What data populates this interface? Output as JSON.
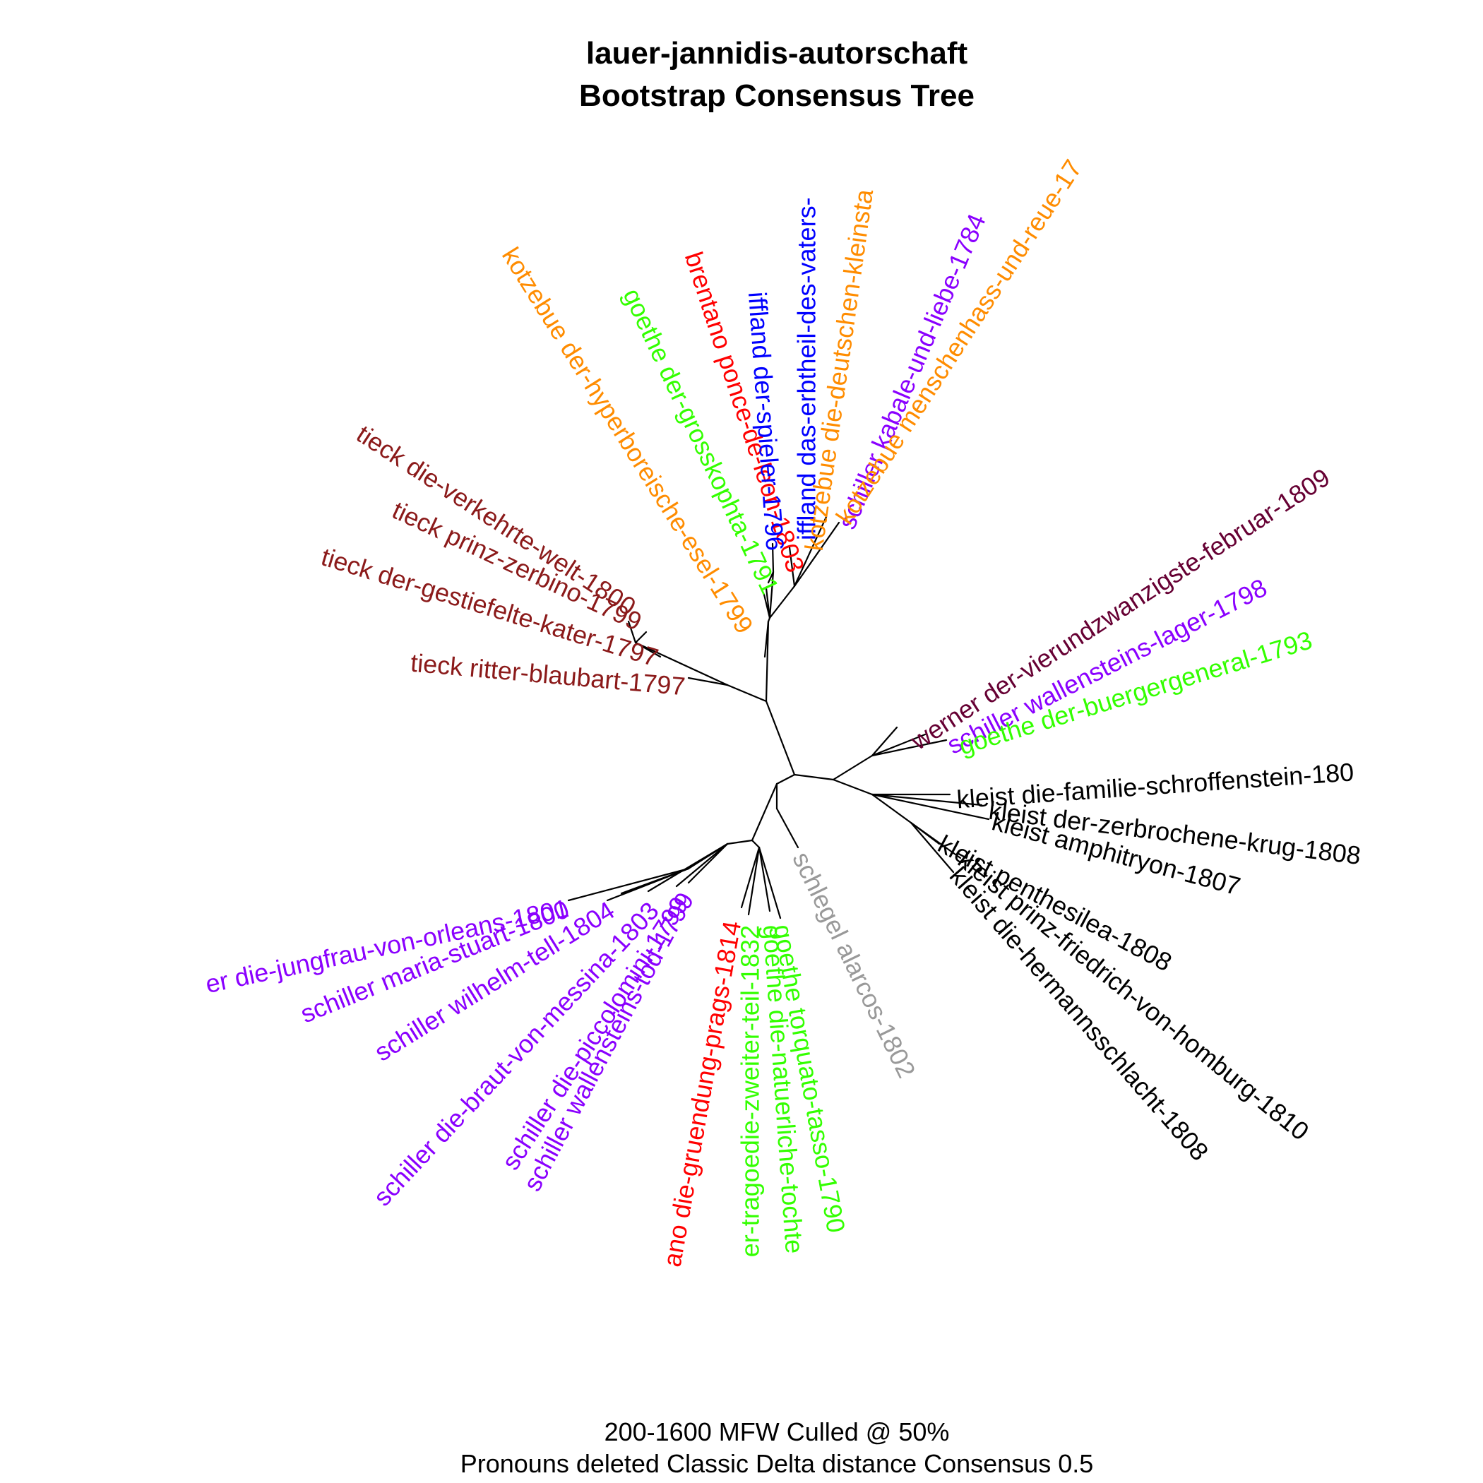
{
  "figure": {
    "title_line1": "lauer-jannidis-autorschaft",
    "title_line2": "Bootstrap Consensus Tree",
    "caption_line1": "200-1600 MFW  Culled @ 50%",
    "caption_line2": "Pronouns deleted Classic Delta distance Consensus 0.5"
  },
  "colors": {
    "tieck": "#8b1a1a",
    "kotzebue": "#ff8c00",
    "goethe": "#33ff00",
    "brentano": "#ff0000",
    "iffland": "#0000ff",
    "schiller": "#8a00ff",
    "werner": "#660033",
    "kleist": "#000000",
    "schlegel": "#999999"
  },
  "leaves": [
    {
      "label": "kotzebue der-hyperboreische-esel-1799",
      "color": "#ff8c00"
    },
    {
      "label": "goethe der-grosskophta-1791",
      "color": "#33ff00"
    },
    {
      "label": "brentano ponce-de-leon-1803",
      "color": "#ff0000"
    },
    {
      "label": "iffland der-spieler-1796",
      "color": "#0000ff"
    },
    {
      "label": "iffland das-erbtheil-des-vaters-",
      "color": "#0000ff"
    },
    {
      "label": "kotzebue die-deutschen-kleinsta",
      "color": "#ff8c00"
    },
    {
      "label": "schiller kabale-und-liebe-1784",
      "color": "#8a00ff"
    },
    {
      "label": "kotzebue menschenhass-und-reue-17",
      "color": "#ff8c00"
    },
    {
      "label": "tieck die-verkehrte-welt-1800",
      "color": "#8b1a1a"
    },
    {
      "label": "tieck prinz-zerbino-1799",
      "color": "#8b1a1a"
    },
    {
      "label": "tieck der-gestiefelte-kater-1797",
      "color": "#8b1a1a"
    },
    {
      "label": "tieck ritter-blaubart-1797",
      "color": "#8b1a1a"
    },
    {
      "label": "werner der-vierundzwanzigste-februar-1809",
      "color": "#660033"
    },
    {
      "label": "schiller wallensteins-lager-1798",
      "color": "#8a00ff"
    },
    {
      "label": "goethe der-buergergeneral-1793",
      "color": "#33ff00"
    },
    {
      "label": "kleist die-familie-schroffenstein-180",
      "color": "#000000"
    },
    {
      "label": "kleist der-zerbrochene-krug-1808",
      "color": "#000000"
    },
    {
      "label": "kleist amphitryon-1807",
      "color": "#000000"
    },
    {
      "label": "kleist penthesilea-1808",
      "color": "#000000"
    },
    {
      "label": "kleist prinz-friedrich-von-homburg-1810",
      "color": "#000000"
    },
    {
      "label": "kleist die-hermannsschlacht-1808",
      "color": "#000000"
    },
    {
      "label": "er die-jungfrau-von-orleans-1801",
      "color": "#8a00ff"
    },
    {
      "label": "schiller maria-stuart-1800",
      "color": "#8a00ff"
    },
    {
      "label": "schiller wilhelm-tell-1804",
      "color": "#8a00ff"
    },
    {
      "label": "schiller die-braut-von-messina-1803",
      "color": "#8a00ff"
    },
    {
      "label": "schiller die-piccolomini-1799",
      "color": "#8a00ff"
    },
    {
      "label": "schiller wallensteins-tod-1799",
      "color": "#8a00ff"
    },
    {
      "label": "ano die-gruendung-prags-1814",
      "color": "#ff0000"
    },
    {
      "label": "er-tragoedie-zweiter-teil-1832",
      "color": "#33ff00"
    },
    {
      "label": "goethe die-natuerliche-tochte",
      "color": "#33ff00"
    },
    {
      "label": "goethe torquato-tasso-1790",
      "color": "#33ff00"
    },
    {
      "label": "schlegel alarcos-1802",
      "color": "#999999"
    }
  ]
}
